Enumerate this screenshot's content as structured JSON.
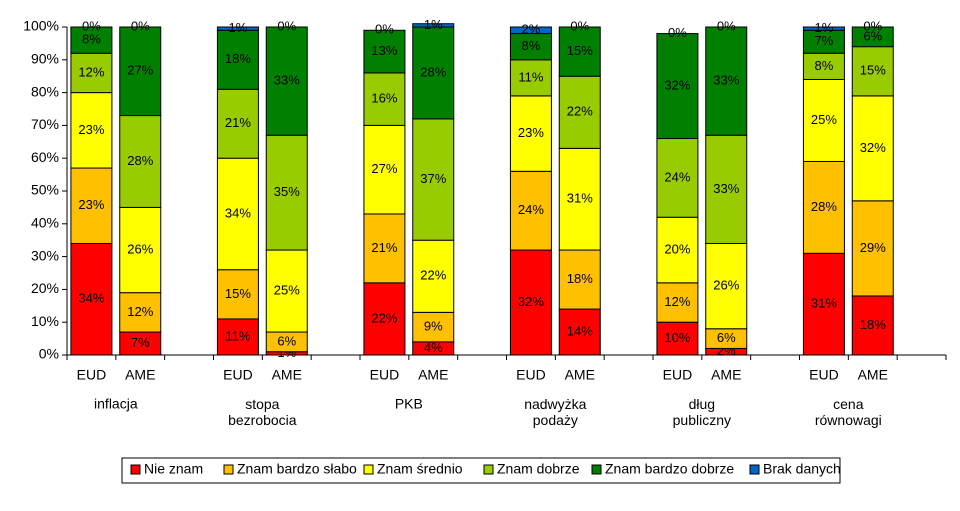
{
  "chart_data": {
    "type": "stacked_bar_100",
    "categories": [
      "EUD",
      "AME",
      "EUD",
      "AME",
      "EUD",
      "AME",
      "EUD",
      "AME",
      "EUD",
      "AME",
      "EUD",
      "AME"
    ],
    "groups": [
      "inflacja",
      "stopa bezrobocia",
      "PKB",
      "nadwyżka podaży",
      "dług publiczny",
      "cena równowagi"
    ],
    "ylim": [
      0,
      100
    ],
    "yticks": [
      {
        "value": 0,
        "label": "0%"
      },
      {
        "value": 10,
        "label": "10%"
      },
      {
        "value": 20,
        "label": "20%"
      },
      {
        "value": 30,
        "label": "30%"
      },
      {
        "value": 40,
        "label": "40%"
      },
      {
        "value": 50,
        "label": "50%"
      },
      {
        "value": 60,
        "label": "60%"
      },
      {
        "value": 70,
        "label": "70%"
      },
      {
        "value": 80,
        "label": "80%"
      },
      {
        "value": 90,
        "label": "90%"
      },
      {
        "value": 100,
        "label": "100%"
      }
    ],
    "series": [
      {
        "name": "Nie znam",
        "color": "#ff0000",
        "values": [
          34,
          7,
          11,
          1,
          22,
          4,
          32,
          14,
          10,
          2,
          31,
          18
        ],
        "value_labels": [
          "34%",
          "7%",
          "11%",
          "1%",
          "22%",
          "4%",
          "32%",
          "14%",
          "10%",
          "2%",
          "31%",
          "18%"
        ]
      },
      {
        "name": "Znam bardzo słabo",
        "color": "#ffc000",
        "values": [
          23,
          12,
          15,
          6,
          21,
          9,
          24,
          18,
          12,
          6,
          28,
          29
        ],
        "value_labels": [
          "23%",
          "12%",
          "15%",
          "6%",
          "21%",
          "9%",
          "24%",
          "18%",
          "12%",
          "6%",
          "28%",
          "29%"
        ]
      },
      {
        "name": "Znam średnio",
        "color": "#ffff00",
        "values": [
          23,
          26,
          34,
          25,
          27,
          22,
          23,
          31,
          20,
          26,
          25,
          32
        ],
        "value_labels": [
          "23%",
          "26%",
          "34%",
          "25%",
          "27%",
          "22%",
          "23%",
          "31%",
          "20%",
          "26%",
          "25%",
          "32%"
        ]
      },
      {
        "name": "Znam dobrze",
        "color": "#99cc00",
        "values": [
          12,
          28,
          21,
          35,
          16,
          37,
          11,
          22,
          24,
          33,
          8,
          15
        ],
        "value_labels": [
          "12%",
          "28%",
          "21%",
          "35%",
          "16%",
          "37%",
          "11%",
          "22%",
          "24%",
          "33%",
          "8%",
          "15%"
        ]
      },
      {
        "name": "Znam bardzo dobrze",
        "color": "#008000",
        "values": [
          8,
          27,
          18,
          33,
          13,
          28,
          8,
          15,
          32,
          33,
          7,
          6
        ],
        "value_labels": [
          "8%",
          "27%",
          "18%",
          "33%",
          "13%",
          "28%",
          "8%",
          "15%",
          "32%",
          "33%",
          "7%",
          "6%"
        ]
      },
      {
        "name": "Brak danych",
        "color": "#0066cc",
        "values": [
          0,
          0,
          1,
          0,
          0,
          1,
          2,
          0,
          0,
          0,
          1,
          0
        ],
        "value_labels": [
          "0%",
          "0%",
          "1%",
          "0%",
          "0%",
          "1%",
          "2%",
          "0%",
          "0%",
          "0%",
          "1%",
          "0%"
        ]
      }
    ]
  }
}
